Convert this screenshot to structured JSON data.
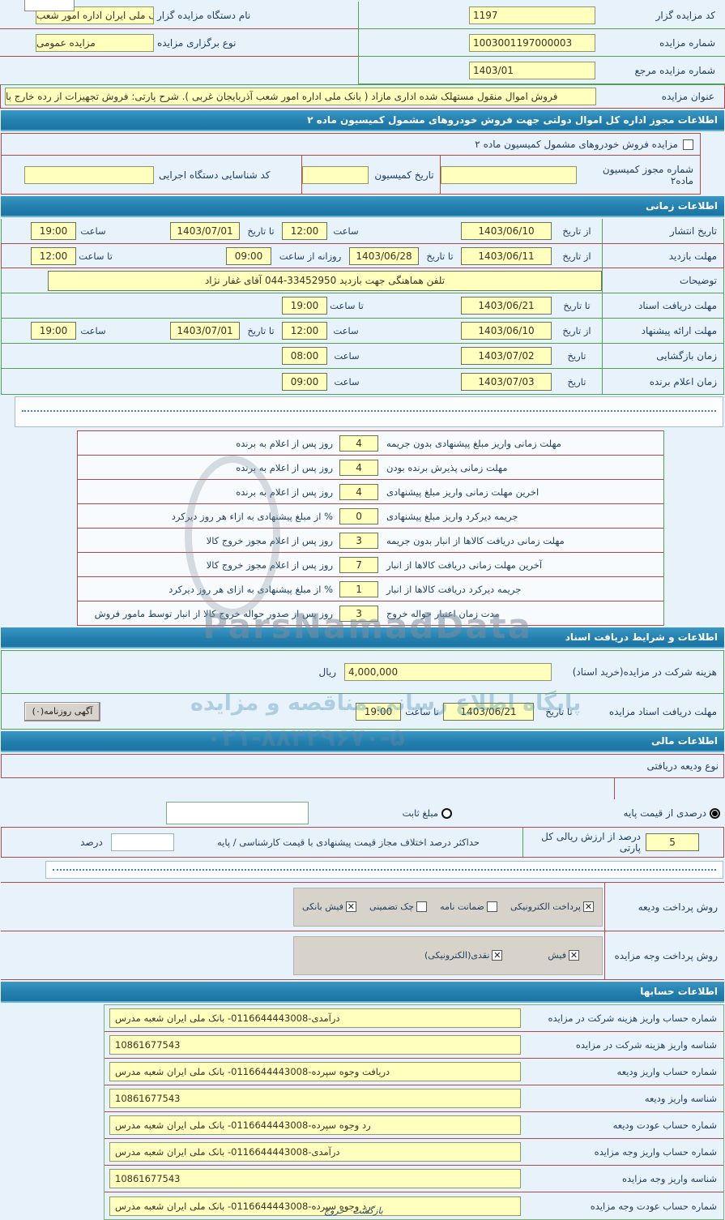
{
  "watermark": {
    "brand": "ParsNamadData",
    "line1": "پایگاه اطلاع رسانی مناقصه و مزایده",
    "phone": "۰۲۱-۸۸۳۲۹۶۷۰-۵"
  },
  "top": {
    "bidder_code": {
      "label": "کد مزایده گزار",
      "value": "1197"
    },
    "org_name": {
      "label": "نام دستگاه مزایده گزار",
      "value": "بانک ملی ایران اداره امور شعب"
    },
    "auction_no": {
      "label": "شماره مزایده",
      "value": "1003001197000003"
    },
    "auction_type": {
      "label": "نوع برگزاری مزایده",
      "value": "مزایده عمومی"
    },
    "ref_no": {
      "label": "شماره مزایده مرجع",
      "value": "1403/01"
    },
    "title": {
      "label": "عنوان مزایده",
      "value": "فروش اموال منقول مستهلک شده اداری مازاد ( بانک ملی اداره امور شعب آذربایجان غربی ). شرح پارتی: فروش تجهیزات از رده خارج با"
    }
  },
  "commission": {
    "header": "اطلاعات مجوز اداره کل اموال دولتی جهت فروش خودروهای مشمول کمیسیون ماده ۲",
    "checkbox_label": "مزایده فروش خودروهای مشمول کمیسیون ماده ۲",
    "permit_no_label": "شماره مجوز کمیسیون ماده۲",
    "date_label": "تاریخ کمیسیون",
    "agency_code_label": "کد شناسایی دستگاه اجرایی"
  },
  "timing": {
    "header": "اطلاعات زمانی",
    "publish": {
      "label": "تاریخ انتشار",
      "l1": "از تاریخ",
      "v1": "1403/06/10",
      "l2": "ساعت",
      "v2": "12:00",
      "l3": "تا تاریخ",
      "v3": "1403/07/01",
      "l4": "ساعت",
      "v4": "19:00"
    },
    "visit": {
      "label": "مهلت بازدید",
      "l1": "از تاریخ",
      "v1": "1403/06/11",
      "l2": "تا تاریخ",
      "v2": "1403/06/28",
      "l3": "روزانه از ساعت",
      "v3": "09:00",
      "l4": "تا ساعت",
      "v4": "12:00"
    },
    "notes": {
      "label": "توضیحات",
      "value": "تلفن هماهنگی جهت بازدید 33452950-044 آقای غفار نژاد"
    },
    "docs": {
      "label": "مهلت دریافت اسناد",
      "l1": "تا تاریخ",
      "v1": "1403/06/21",
      "l2": "تا ساعت",
      "v2": "19:00"
    },
    "offer": {
      "label": "مهلت ارائه پیشنهاد",
      "l1": "از تاریخ",
      "v1": "1403/06/10",
      "l2": "ساعت",
      "v2": "12:00",
      "l3": "تا تاریخ",
      "v3": "1403/07/01",
      "l4": "ساعت",
      "v4": "19:00"
    },
    "opening": {
      "label": "زمان بازگشایی",
      "l1": "تاریخ",
      "v1": "1403/07/02",
      "l2": "ساعت",
      "v2": "08:00"
    },
    "winner": {
      "label": "زمان اعلام برنده",
      "l1": "تاریخ",
      "v1": "1403/07/03",
      "l2": "ساعت",
      "v2": "09:00"
    }
  },
  "deadlines": {
    "rows": [
      {
        "label": "مهلت زمانی واریز مبلغ پیشنهادی بدون جریمه",
        "value": "4",
        "suffix": "روز پس از اعلام به برنده"
      },
      {
        "label": "مهلت زمانی پذیرش برنده بودن",
        "value": "4",
        "suffix": "روز پس از اعلام به برنده"
      },
      {
        "label": "اخرین مهلت زمانی واریز مبلغ پیشنهادی",
        "value": "4",
        "suffix": "روز پس از اعلام به برنده"
      },
      {
        "label": "جریمه دیرکرد واریز مبلغ پیشنهادی",
        "value": "0",
        "suffix": "% از مبلغ پیشنهادی به ازاء هر روز دیرکرد"
      },
      {
        "label": "مهلت زمانی دریافت کالاها از انبار بدون جریمه",
        "value": "3",
        "suffix": "روز پس از اعلام مجوز خروج کالا"
      },
      {
        "label": "آخرین مهلت زمانی دریافت کالاها از انبار",
        "value": "7",
        "suffix": "روز پس از اعلام مجوز خروج کالا"
      },
      {
        "label": "جریمه دیرکرد دریافت کالاها از انبار",
        "value": "1",
        "suffix": "% از مبلغ پیشنهادی به ازای هر روز دیرکرد"
      },
      {
        "label": "مدت زمان اعتبار حواله خروج",
        "value": "3",
        "suffix": "روز پس از صدور حواله خروج کالا از انبار توسط مامور فروش"
      }
    ]
  },
  "docs_section": {
    "header": "اطلاعات و شرایط دریافت اسناد",
    "fee_label": "هزینه شرکت در مزایده(خرید اسناد)",
    "fee_value": "4,000,000",
    "fee_unit": "ریال",
    "deadline_label": "مهلت دریافت اسناد مزایده",
    "l1": "تا تاریخ",
    "v1": "1403/06/21",
    "l2": "تا ساعت",
    "v2": "19:00",
    "newspaper_button": "آگهی روزنامه(۰)"
  },
  "financial": {
    "header": "اطلاعات مالی",
    "deposit_type_label": "نوع ودیعه دریافتی",
    "radio_percent_label": "درصدی از قیمت پایه",
    "radio_fixed_label": "مبلغ ثابت",
    "percent_value": "5",
    "percent_label": "درصد از ارزش ریالی کل پارتی",
    "max_diff_label": "حداکثر درصد اختلاف مجاز قیمت پیشنهادی با قیمت کارشناسی / پایه",
    "percent_unit": "درصد",
    "deposit_methods_label": "روش پرداخت ودیعه",
    "deposit_methods": [
      {
        "label": "پرداخت الکترونیکی",
        "mark": "✕"
      },
      {
        "label": "ضمانت نامه",
        "mark": ""
      },
      {
        "label": "چک تضمینی",
        "mark": ""
      },
      {
        "label": "فیش بانکی",
        "mark": "✕"
      }
    ],
    "payment_methods_label": "روش پرداخت وجه مزایده",
    "payment_methods": [
      {
        "label": "فیش",
        "mark": "✕"
      },
      {
        "label": "نقدی(الکترونیکی)",
        "mark": "✕"
      }
    ]
  },
  "accounts": {
    "header": "اطلاعات حسابها",
    "rows": [
      {
        "label": "شماره حساب واریز هزینه شرکت در مزایده",
        "value": "درآمدی-0116644443008- بانک ملی ایران شعبه مدرس"
      },
      {
        "label": "شناسه واریز هزینه شرکت در مزایده",
        "value": "10861677543"
      },
      {
        "label": "شماره حساب واریز ودیعه",
        "value": "دریافت وجوه سپرده-0116644443008- بانک ملی ایران شعبه مدرس"
      },
      {
        "label": "شناسه واریز ودیعه",
        "value": "10861677543"
      },
      {
        "label": "شماره حساب عودت ودیعه",
        "value": "رد وجوه سپرده-0116644443008- بانک ملی ایران شعبه مدرس"
      },
      {
        "label": "شماره حساب واریز وجه مزایده",
        "value": "درآمدی-0116644443008- بانک ملی ایران شعبه مدرس"
      },
      {
        "label": "شناسه واریز وجه مزایده",
        "value": "10861677543"
      },
      {
        "label": "شماره حساب عودت وجه مزایده",
        "value": "رد وجوه سپرده-0116644443008- بانک ملی ایران شعبه مدرس"
      }
    ]
  },
  "footer": {
    "back": "بازگشت",
    "exit": "خروج"
  }
}
